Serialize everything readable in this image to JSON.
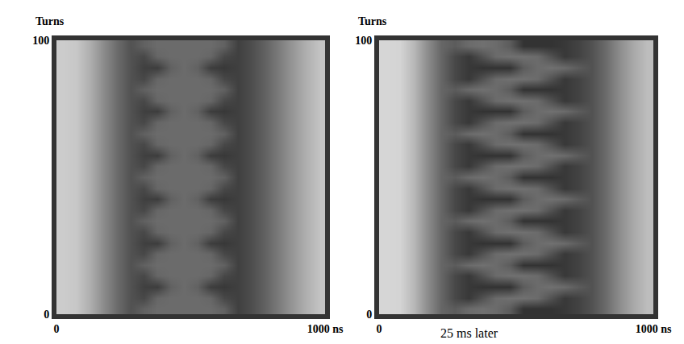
{
  "chart_data": [
    {
      "type": "heatmap",
      "ylabel": "Turns",
      "xlim": [
        0,
        1000
      ],
      "xticks": [
        0,
        {
          "value": 1000,
          "label": "1000 ns"
        }
      ],
      "ylim": [
        0,
        100
      ],
      "yticks": [
        0,
        100
      ],
      "zlim": [
        0,
        100
      ],
      "x": [
        25,
        75,
        125,
        175,
        225,
        275,
        325,
        375,
        425,
        475,
        525,
        575,
        625,
        675,
        725,
        775,
        825,
        875,
        925,
        975
      ],
      "y": [
        2,
        6,
        10,
        14,
        18,
        22,
        26,
        30,
        34,
        38,
        42,
        46,
        50,
        54,
        58,
        62,
        66,
        70,
        74,
        78,
        82,
        86,
        90,
        94,
        98
      ],
      "z": [
        [
          80,
          78,
          68,
          55,
          42,
          32,
          38,
          42,
          42,
          42,
          42,
          42,
          38,
          25,
          30,
          38,
          48,
          58,
          68,
          76
        ],
        [
          80,
          78,
          68,
          55,
          42,
          32,
          28,
          40,
          42,
          42,
          42,
          40,
          28,
          25,
          30,
          38,
          48,
          58,
          68,
          76
        ],
        [
          80,
          78,
          68,
          55,
          42,
          32,
          25,
          24,
          38,
          42,
          38,
          24,
          22,
          25,
          30,
          38,
          48,
          58,
          68,
          76
        ],
        [
          80,
          78,
          68,
          55,
          42,
          32,
          28,
          40,
          42,
          42,
          42,
          40,
          28,
          25,
          30,
          38,
          48,
          58,
          68,
          76
        ],
        [
          80,
          78,
          68,
          55,
          42,
          32,
          38,
          42,
          42,
          42,
          42,
          42,
          38,
          25,
          30,
          38,
          48,
          58,
          68,
          76
        ],
        [
          80,
          78,
          68,
          55,
          42,
          32,
          28,
          40,
          42,
          42,
          42,
          40,
          28,
          25,
          30,
          38,
          48,
          58,
          68,
          76
        ],
        [
          80,
          78,
          68,
          55,
          42,
          32,
          25,
          24,
          38,
          42,
          38,
          24,
          22,
          25,
          30,
          38,
          48,
          58,
          68,
          76
        ],
        [
          80,
          78,
          68,
          55,
          42,
          32,
          28,
          40,
          42,
          42,
          42,
          40,
          28,
          25,
          30,
          38,
          48,
          58,
          68,
          76
        ],
        [
          80,
          78,
          68,
          55,
          42,
          32,
          38,
          42,
          42,
          42,
          42,
          42,
          38,
          25,
          30,
          38,
          48,
          58,
          68,
          76
        ],
        [
          80,
          78,
          68,
          55,
          42,
          32,
          28,
          40,
          42,
          42,
          42,
          40,
          28,
          25,
          30,
          38,
          48,
          58,
          68,
          76
        ],
        [
          80,
          78,
          68,
          55,
          42,
          32,
          25,
          24,
          38,
          42,
          38,
          24,
          22,
          25,
          30,
          38,
          48,
          58,
          68,
          76
        ],
        [
          80,
          78,
          68,
          55,
          42,
          32,
          28,
          40,
          42,
          42,
          42,
          40,
          28,
          25,
          30,
          38,
          48,
          58,
          68,
          76
        ],
        [
          80,
          78,
          68,
          55,
          42,
          32,
          38,
          42,
          42,
          42,
          42,
          42,
          38,
          25,
          30,
          38,
          48,
          58,
          68,
          76
        ],
        [
          80,
          78,
          68,
          55,
          42,
          32,
          28,
          40,
          42,
          42,
          42,
          40,
          28,
          25,
          30,
          38,
          48,
          58,
          68,
          76
        ],
        [
          80,
          78,
          68,
          55,
          42,
          32,
          25,
          24,
          38,
          42,
          38,
          24,
          22,
          25,
          30,
          38,
          48,
          58,
          68,
          76
        ],
        [
          80,
          78,
          68,
          55,
          42,
          32,
          28,
          40,
          42,
          42,
          42,
          40,
          28,
          25,
          30,
          38,
          48,
          58,
          68,
          76
        ],
        [
          80,
          78,
          68,
          55,
          42,
          32,
          38,
          42,
          42,
          42,
          42,
          42,
          38,
          25,
          30,
          38,
          48,
          58,
          68,
          76
        ],
        [
          80,
          78,
          68,
          55,
          42,
          32,
          28,
          40,
          42,
          42,
          42,
          40,
          28,
          25,
          30,
          38,
          48,
          58,
          68,
          76
        ],
        [
          80,
          78,
          68,
          55,
          42,
          32,
          25,
          24,
          38,
          42,
          38,
          24,
          22,
          25,
          30,
          38,
          48,
          58,
          68,
          76
        ],
        [
          80,
          78,
          68,
          55,
          42,
          32,
          28,
          40,
          42,
          42,
          42,
          40,
          28,
          25,
          30,
          38,
          48,
          58,
          68,
          76
        ],
        [
          80,
          78,
          68,
          55,
          42,
          32,
          38,
          42,
          42,
          42,
          42,
          42,
          38,
          25,
          30,
          38,
          48,
          58,
          68,
          76
        ],
        [
          80,
          78,
          68,
          55,
          42,
          32,
          28,
          40,
          42,
          42,
          42,
          40,
          28,
          25,
          30,
          38,
          48,
          58,
          68,
          76
        ],
        [
          80,
          78,
          68,
          55,
          42,
          32,
          25,
          24,
          38,
          42,
          38,
          24,
          22,
          25,
          30,
          38,
          48,
          58,
          68,
          76
        ],
        [
          80,
          78,
          68,
          55,
          42,
          32,
          28,
          40,
          42,
          42,
          42,
          40,
          28,
          25,
          30,
          38,
          48,
          58,
          68,
          76
        ],
        [
          80,
          78,
          68,
          55,
          42,
          32,
          38,
          42,
          42,
          42,
          42,
          42,
          38,
          25,
          30,
          38,
          48,
          58,
          68,
          76
        ]
      ]
    },
    {
      "type": "heatmap",
      "ylabel": "Turns",
      "annotation": "25 ms later",
      "xlim": [
        0,
        1000
      ],
      "xticks": [
        0,
        {
          "value": 1000,
          "label": "1000 ns"
        }
      ],
      "ylim": [
        0,
        100
      ],
      "yticks": [
        0,
        100
      ],
      "zlim": [
        0,
        100
      ],
      "x": [
        25,
        75,
        125,
        175,
        225,
        275,
        325,
        375,
        425,
        475,
        525,
        575,
        625,
        675,
        725,
        775,
        825,
        875,
        925,
        975
      ],
      "y": [
        2,
        6,
        10,
        14,
        18,
        22,
        26,
        30,
        34,
        38,
        42,
        46,
        50,
        54,
        58,
        62,
        66,
        70,
        74,
        78,
        82,
        86,
        90,
        94,
        98
      ],
      "z": [
        [
          84,
          83,
          72,
          55,
          40,
          36,
          42,
          44,
          42,
          36,
          20,
          20,
          20,
          22,
          26,
          32,
          42,
          55,
          66,
          74
        ],
        [
          84,
          83,
          72,
          55,
          40,
          28,
          22,
          32,
          42,
          44,
          44,
          42,
          32,
          22,
          26,
          32,
          42,
          55,
          66,
          74
        ],
        [
          84,
          83,
          72,
          55,
          40,
          28,
          22,
          20,
          20,
          20,
          36,
          42,
          44,
          42,
          36,
          32,
          42,
          55,
          66,
          74
        ],
        [
          84,
          83,
          72,
          55,
          40,
          28,
          22,
          32,
          42,
          44,
          44,
          42,
          32,
          22,
          26,
          32,
          42,
          55,
          66,
          74
        ],
        [
          84,
          83,
          72,
          55,
          40,
          36,
          42,
          44,
          42,
          36,
          20,
          20,
          20,
          22,
          26,
          32,
          42,
          55,
          66,
          74
        ],
        [
          84,
          83,
          72,
          55,
          40,
          28,
          22,
          32,
          42,
          44,
          44,
          42,
          32,
          22,
          26,
          32,
          42,
          55,
          66,
          74
        ],
        [
          84,
          83,
          72,
          55,
          40,
          28,
          22,
          20,
          20,
          20,
          36,
          42,
          44,
          42,
          36,
          32,
          42,
          55,
          66,
          74
        ],
        [
          84,
          83,
          72,
          55,
          40,
          28,
          22,
          32,
          42,
          44,
          44,
          42,
          32,
          22,
          26,
          32,
          42,
          55,
          66,
          74
        ],
        [
          84,
          83,
          72,
          55,
          40,
          36,
          42,
          44,
          42,
          36,
          20,
          20,
          20,
          22,
          26,
          32,
          42,
          55,
          66,
          74
        ],
        [
          84,
          83,
          72,
          55,
          40,
          28,
          22,
          32,
          42,
          44,
          44,
          42,
          32,
          22,
          26,
          32,
          42,
          55,
          66,
          74
        ],
        [
          84,
          83,
          72,
          55,
          40,
          28,
          22,
          20,
          20,
          20,
          36,
          42,
          44,
          42,
          36,
          32,
          42,
          55,
          66,
          74
        ],
        [
          84,
          83,
          72,
          55,
          40,
          28,
          22,
          32,
          42,
          44,
          44,
          42,
          32,
          22,
          26,
          32,
          42,
          55,
          66,
          74
        ],
        [
          84,
          83,
          72,
          55,
          40,
          36,
          42,
          44,
          42,
          36,
          20,
          20,
          20,
          22,
          26,
          32,
          42,
          55,
          66,
          74
        ],
        [
          84,
          83,
          72,
          55,
          40,
          28,
          22,
          32,
          42,
          44,
          44,
          42,
          32,
          22,
          26,
          32,
          42,
          55,
          66,
          74
        ],
        [
          84,
          83,
          72,
          55,
          40,
          28,
          22,
          20,
          20,
          20,
          36,
          42,
          44,
          42,
          36,
          32,
          42,
          55,
          66,
          74
        ],
        [
          84,
          83,
          72,
          55,
          40,
          28,
          22,
          32,
          42,
          44,
          44,
          42,
          32,
          22,
          26,
          32,
          42,
          55,
          66,
          74
        ],
        [
          84,
          83,
          72,
          55,
          40,
          36,
          42,
          44,
          42,
          36,
          20,
          20,
          20,
          22,
          26,
          32,
          42,
          55,
          66,
          74
        ],
        [
          84,
          83,
          72,
          55,
          40,
          28,
          22,
          32,
          42,
          44,
          44,
          42,
          32,
          22,
          26,
          32,
          42,
          55,
          66,
          74
        ],
        [
          84,
          83,
          72,
          55,
          40,
          28,
          22,
          20,
          20,
          20,
          36,
          42,
          44,
          42,
          36,
          32,
          42,
          55,
          66,
          74
        ],
        [
          84,
          83,
          72,
          55,
          40,
          28,
          22,
          32,
          42,
          44,
          44,
          42,
          32,
          22,
          26,
          32,
          42,
          55,
          66,
          74
        ],
        [
          84,
          83,
          72,
          55,
          40,
          36,
          42,
          44,
          42,
          36,
          20,
          20,
          20,
          22,
          26,
          32,
          42,
          55,
          66,
          74
        ],
        [
          84,
          83,
          72,
          55,
          40,
          28,
          22,
          32,
          42,
          44,
          44,
          42,
          32,
          22,
          26,
          32,
          42,
          55,
          66,
          74
        ],
        [
          84,
          83,
          72,
          55,
          40,
          28,
          22,
          20,
          20,
          20,
          36,
          42,
          44,
          42,
          36,
          32,
          42,
          55,
          66,
          74
        ],
        [
          84,
          83,
          72,
          55,
          40,
          28,
          22,
          32,
          42,
          44,
          44,
          42,
          32,
          22,
          26,
          32,
          42,
          55,
          66,
          74
        ],
        [
          84,
          83,
          72,
          55,
          40,
          36,
          42,
          44,
          42,
          36,
          20,
          20,
          20,
          22,
          26,
          32,
          42,
          55,
          66,
          74
        ]
      ]
    }
  ]
}
